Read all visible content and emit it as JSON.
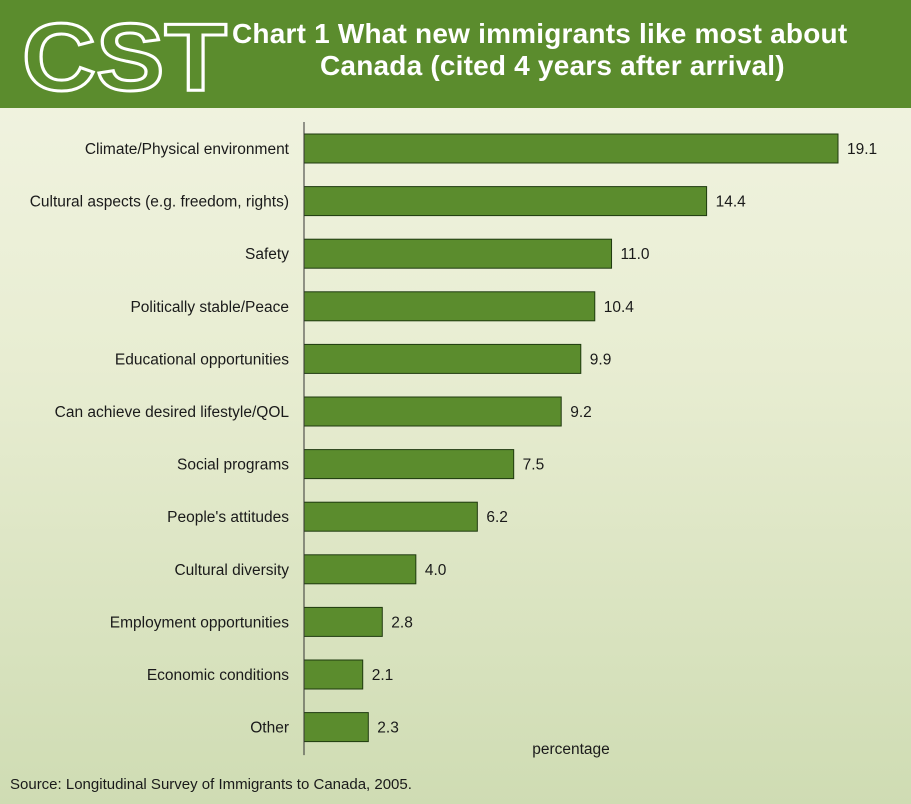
{
  "logo_text": "CST",
  "title_line1": "Chart 1  What new immigrants like most about",
  "title_line2": "Canada (cited 4 years after arrival)",
  "source": "Source: Longitudinal Survey of Immigrants to Canada, 2005.",
  "colors": {
    "header": "#5b8c2d",
    "bar_fill": "#5b8c2d",
    "bar_stroke": "#1f3a0f",
    "axis": "#333333"
  },
  "chart_data": {
    "type": "bar",
    "orientation": "horizontal",
    "title": "Chart 1  What new immigrants like most about Canada (cited 4 years after arrival)",
    "xlabel": "percentage",
    "ylabel": "",
    "grid": false,
    "legend": "none",
    "xlim": [
      0,
      19.1
    ],
    "categories": [
      "Climate/Physical environment",
      "Cultural aspects (e.g. freedom, rights)",
      "Safety",
      "Politically stable/Peace",
      "Educational opportunities",
      "Can achieve desired lifestyle/QOL",
      "Social programs",
      "People's attitudes",
      "Cultural diversity",
      "Employment opportunities",
      "Economic conditions",
      "Other"
    ],
    "values": [
      19.1,
      14.4,
      11.0,
      10.4,
      9.9,
      9.2,
      7.5,
      6.2,
      4.0,
      2.8,
      2.1,
      2.3
    ],
    "value_labels": [
      "19.1",
      "14.4",
      "11.0",
      "10.4",
      "9.9",
      "9.2",
      "7.5",
      "6.2",
      "4.0",
      "2.8",
      "2.1",
      "2.3"
    ]
  }
}
